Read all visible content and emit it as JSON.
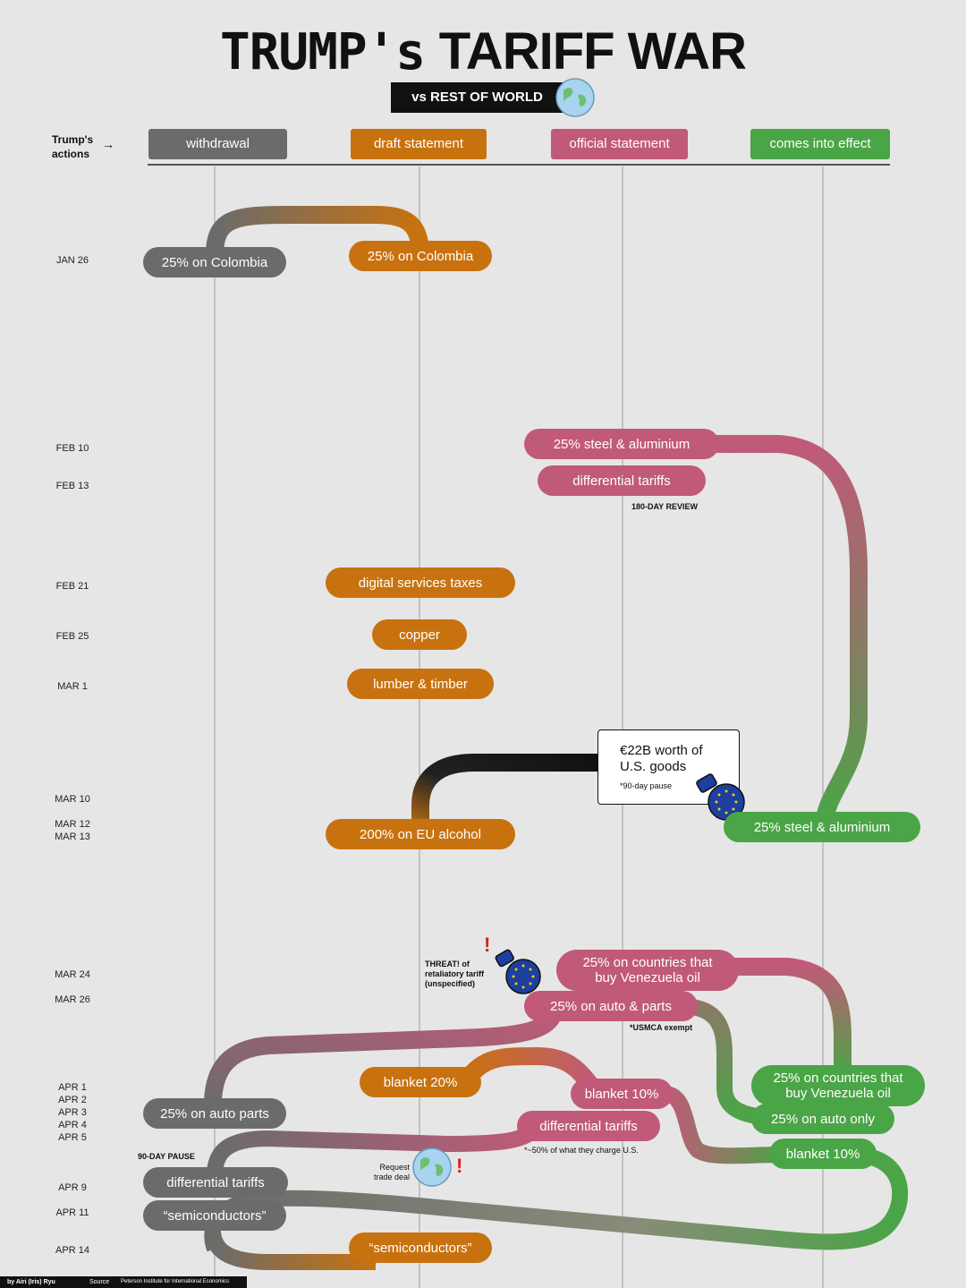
{
  "title": {
    "part1": "TRUMP's",
    "part2": "TARIFF WAR"
  },
  "subtitle": "vs REST OF WORLD",
  "actions_label": "Trump's actions",
  "actions_arrow": "→",
  "columns": [
    {
      "label": "withdrawal",
      "color": "#6b6b6b"
    },
    {
      "label": "draft statement",
      "color": "#c8720f"
    },
    {
      "label": "official statement",
      "color": "#c05a78"
    },
    {
      "label": "comes into effect",
      "color": "#4aa546"
    }
  ],
  "dates": [
    "JAN 26",
    "FEB 10",
    "FEB 13",
    "FEB 21",
    "FEB 25",
    "MAR 1",
    "MAR 10",
    "MAR 12",
    "MAR 13",
    "MAR 24",
    "MAR 26",
    "APR 1",
    "APR 2",
    "APR 3",
    "APR 4",
    "APR 5",
    "APR 9",
    "APR 11",
    "APR 14"
  ],
  "pills": {
    "colombia_withdrawal": "25% on Colombia",
    "colombia_draft": "25% on Colombia",
    "steel_official": "25% steel & aluminium",
    "diff_official_feb": "differential tariffs",
    "digital_draft": "digital services taxes",
    "copper_draft": "copper",
    "lumber_draft": "lumber & timber",
    "eu_alcohol_draft": "200% on EU alcohol",
    "steel_effect": "25% steel & aluminium",
    "venezuela_official": "25% on countries that buy Venezuela oil",
    "auto_official": "25% on auto & parts",
    "blanket20_draft": "blanket 20%",
    "blanket10_official": "blanket 10%",
    "diff_official_apr": "differential tariffs",
    "venezuela_effect": "25% on countries that buy Venezuela oil",
    "auto_only_effect": "25% on auto only",
    "blanket10_effect": "blanket 10%",
    "auto_parts_withdrawal": "25% on auto parts",
    "diff_withdrawal": "differential tariffs",
    "semis_withdrawal": "“semiconductors”",
    "semis_draft": "“semiconductors”"
  },
  "notes": {
    "review": "180-DAY REVIEW",
    "eu_goods": "€22B worth of U.S. goods",
    "eu_pause": "*90-day pause",
    "threat": "THREAT! of retaliatory tariff (unspecified)",
    "usmca": "*USMCA exempt",
    "fifty": "*~50% of what they charge U.S.",
    "pause90": "90-DAY PAUSE",
    "request": "Request trade deal",
    "exclaim": "!"
  },
  "footer": {
    "byline": "by Airi (Iris) Ryu",
    "source_label": "Source",
    "source": "Peterson Institute for International Economics"
  },
  "colors": {
    "grey": "#6b6b6b",
    "orange": "#c8720f",
    "pink": "#c05a78",
    "green": "#4aa546",
    "background": "#e6e6e6"
  },
  "icons": [
    "globe-icon",
    "eu-boxing-glove-icon"
  ]
}
